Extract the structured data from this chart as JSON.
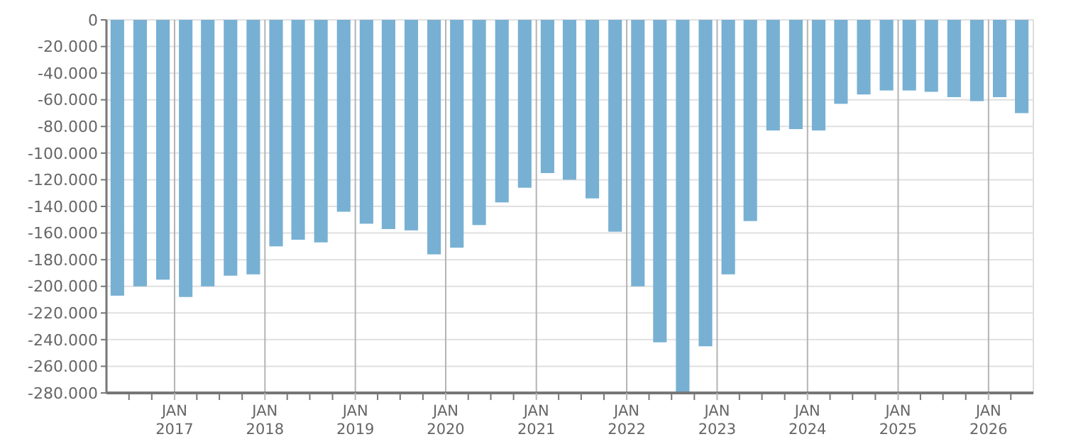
{
  "chart_data": {
    "type": "bar",
    "color": "#77b0d3",
    "grid": true,
    "x": [
      "2016-05-15",
      "2016-08-15",
      "2016-11-15",
      "2017-02-15",
      "2017-05-15",
      "2017-08-15",
      "2017-11-15",
      "2018-02-15",
      "2018-05-15",
      "2018-08-15",
      "2018-11-15",
      "2019-02-15",
      "2019-05-15",
      "2019-08-15",
      "2019-11-15",
      "2020-02-15",
      "2020-05-15",
      "2020-08-15",
      "2020-11-15",
      "2021-02-15",
      "2021-05-15",
      "2021-08-15",
      "2021-11-15",
      "2022-02-15",
      "2022-05-15",
      "2022-08-15",
      "2022-11-15",
      "2023-02-15",
      "2023-05-15",
      "2023-08-15",
      "2023-11-15",
      "2024-02-15",
      "2024-05-15",
      "2024-08-15",
      "2024-11-15",
      "2025-02-15",
      "2025-05-15",
      "2025-08-15",
      "2025-11-15",
      "2026-02-15",
      "2026-05-15"
    ],
    "values": [
      -207000,
      -200000,
      -195000,
      -208000,
      -200000,
      -192000,
      -191000,
      -170000,
      -165000,
      -167000,
      -144000,
      -153000,
      -157000,
      -158000,
      -176000,
      -171000,
      -154000,
      -137000,
      -126000,
      -115000,
      -120000,
      -134000,
      -159000,
      -200000,
      -242000,
      -280000,
      -245000,
      -191000,
      -151000,
      -83000,
      -82000,
      -83000,
      -63000,
      -56000,
      -53000,
      -53000,
      -54000,
      -58000,
      -61000,
      -58000,
      -70000
    ],
    "xlim": [
      "2016-04-01",
      "2026-07-01"
    ],
    "xticks": [
      {
        "value": "2016-07-01",
        "label": null
      },
      {
        "value": "2016-10-01",
        "label": null
      },
      {
        "value": "2017-01-01",
        "label": "JAN\n2017"
      },
      {
        "value": "2017-04-01",
        "label": null
      },
      {
        "value": "2017-07-01",
        "label": null
      },
      {
        "value": "2017-10-01",
        "label": null
      },
      {
        "value": "2018-01-01",
        "label": "JAN\n2018"
      },
      {
        "value": "2018-04-01",
        "label": null
      },
      {
        "value": "2018-07-01",
        "label": null
      },
      {
        "value": "2018-10-01",
        "label": null
      },
      {
        "value": "2019-01-01",
        "label": "JAN\n2019"
      },
      {
        "value": "2019-04-01",
        "label": null
      },
      {
        "value": "2019-07-01",
        "label": null
      },
      {
        "value": "2019-10-01",
        "label": null
      },
      {
        "value": "2020-01-01",
        "label": "JAN\n2020"
      },
      {
        "value": "2020-04-01",
        "label": null
      },
      {
        "value": "2020-07-01",
        "label": null
      },
      {
        "value": "2020-10-01",
        "label": null
      },
      {
        "value": "2021-01-01",
        "label": "JAN\n2021"
      },
      {
        "value": "2021-04-01",
        "label": null
      },
      {
        "value": "2021-07-01",
        "label": null
      },
      {
        "value": "2021-10-01",
        "label": null
      },
      {
        "value": "2022-01-01",
        "label": "JAN\n2022"
      },
      {
        "value": "2022-04-01",
        "label": null
      },
      {
        "value": "2022-07-01",
        "label": null
      },
      {
        "value": "2022-10-01",
        "label": null
      },
      {
        "value": "2023-01-01",
        "label": "JAN\n2023"
      },
      {
        "value": "2023-04-01",
        "label": null
      },
      {
        "value": "2023-07-01",
        "label": null
      },
      {
        "value": "2023-10-01",
        "label": null
      },
      {
        "value": "2024-01-01",
        "label": "JAN\n2024"
      },
      {
        "value": "2024-04-01",
        "label": null
      },
      {
        "value": "2024-07-01",
        "label": null
      },
      {
        "value": "2024-10-01",
        "label": null
      },
      {
        "value": "2025-01-01",
        "label": "JAN\n2025"
      },
      {
        "value": "2025-04-01",
        "label": null
      },
      {
        "value": "2025-07-01",
        "label": null
      },
      {
        "value": "2025-10-01",
        "label": null
      },
      {
        "value": "2026-01-01",
        "label": "JAN\n2026"
      },
      {
        "value": "2026-04-01",
        "label": null
      }
    ],
    "ylim": [
      -280000,
      0
    ],
    "yticks": [
      0,
      {
        "value": -20000,
        "label": "-20.000"
      },
      {
        "value": -40000,
        "label": "-40.000"
      },
      {
        "value": -60000,
        "label": "-60.000"
      },
      {
        "value": -80000,
        "label": "-80.000"
      },
      {
        "value": -100000,
        "label": "-100.000"
      },
      {
        "value": -120000,
        "label": "-120.000"
      },
      {
        "value": -140000,
        "label": "-140.000"
      },
      {
        "value": -160000,
        "label": "-160.000"
      },
      {
        "value": -180000,
        "label": "-180.000"
      },
      {
        "value": -200000,
        "label": "-200.000"
      },
      {
        "value": -220000,
        "label": "-220.000"
      },
      {
        "value": -240000,
        "label": "-240.000"
      },
      {
        "value": -260000,
        "label": "-260.000"
      },
      {
        "value": -280000,
        "label": "-280.000"
      }
    ]
  }
}
